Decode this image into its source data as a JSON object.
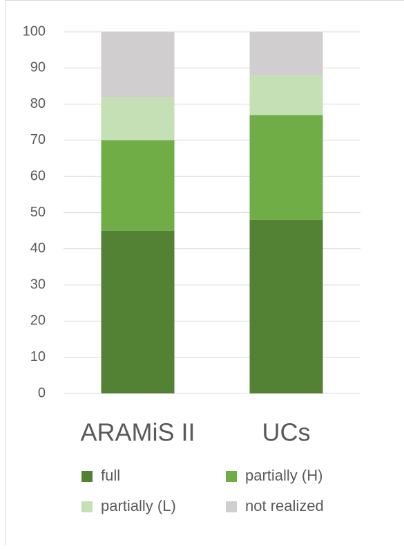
{
  "chart_data": {
    "type": "stacked_bar",
    "categories": [
      "ARAMiS II",
      "UCs"
    ],
    "series": [
      {
        "name": "full",
        "color": "#548235",
        "values": [
          45,
          48
        ]
      },
      {
        "name": "partially (H)",
        "color": "#70ad47",
        "values": [
          25,
          29
        ]
      },
      {
        "name": "partially (L)",
        "color": "#c5e0b4",
        "values": [
          12,
          11
        ]
      },
      {
        "name": "not realized",
        "color": "#d0cece",
        "values": [
          18,
          12
        ]
      }
    ],
    "ylim": [
      0,
      100
    ],
    "yticks": [
      0,
      10,
      20,
      30,
      40,
      50,
      60,
      70,
      80,
      90,
      100
    ],
    "grid": true
  }
}
